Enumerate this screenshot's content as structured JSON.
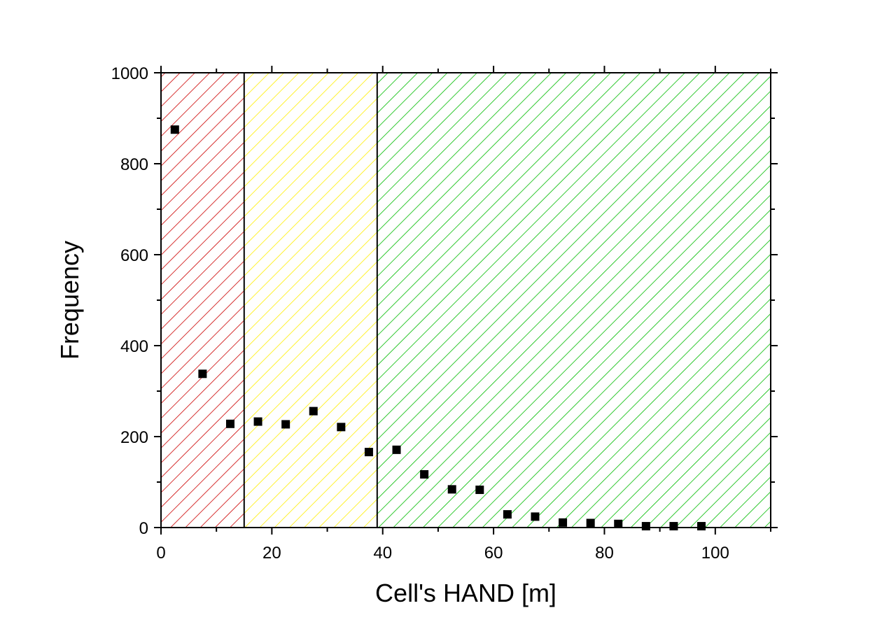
{
  "chart_data": {
    "type": "scatter",
    "title": "",
    "xlabel": "Cell's HAND [m]",
    "ylabel": "Frequency",
    "xlim": [
      0,
      110
    ],
    "ylim": [
      0,
      1000
    ],
    "x_ticks": [
      0,
      20,
      40,
      60,
      80,
      100
    ],
    "x_tick_labels": [
      "0",
      "20",
      "40",
      "60",
      "80",
      "100"
    ],
    "y_ticks": [
      0,
      200,
      400,
      600,
      800,
      1000
    ],
    "y_tick_labels": [
      "0",
      "200",
      "400",
      "600",
      "800",
      "1000"
    ],
    "grid": false,
    "marker": "square",
    "marker_color": "#000000",
    "regions": [
      {
        "from": 0,
        "to": 15,
        "color": "#cc0000",
        "pattern": "diagonal-hatch"
      },
      {
        "from": 15,
        "to": 39,
        "color": "#ffee00",
        "pattern": "diagonal-hatch"
      },
      {
        "from": 39,
        "to": 110,
        "color": "#00bb00",
        "pattern": "diagonal-hatch"
      }
    ],
    "region_boundaries": [
      15,
      39
    ],
    "series": [
      {
        "x": [
          2.5,
          7.5,
          12.5,
          17.5,
          22.5,
          27.5,
          32.5,
          37.5,
          42.5,
          47.5,
          52.5,
          57.5,
          62.5,
          67.5,
          72.5,
          77.5,
          82.5,
          87.5,
          92.5,
          97.5
        ],
        "y": [
          875,
          338,
          228,
          233,
          227,
          256,
          221,
          166,
          171,
          117,
          84,
          83,
          29,
          24,
          11,
          10,
          8,
          3,
          3,
          3
        ]
      }
    ]
  }
}
